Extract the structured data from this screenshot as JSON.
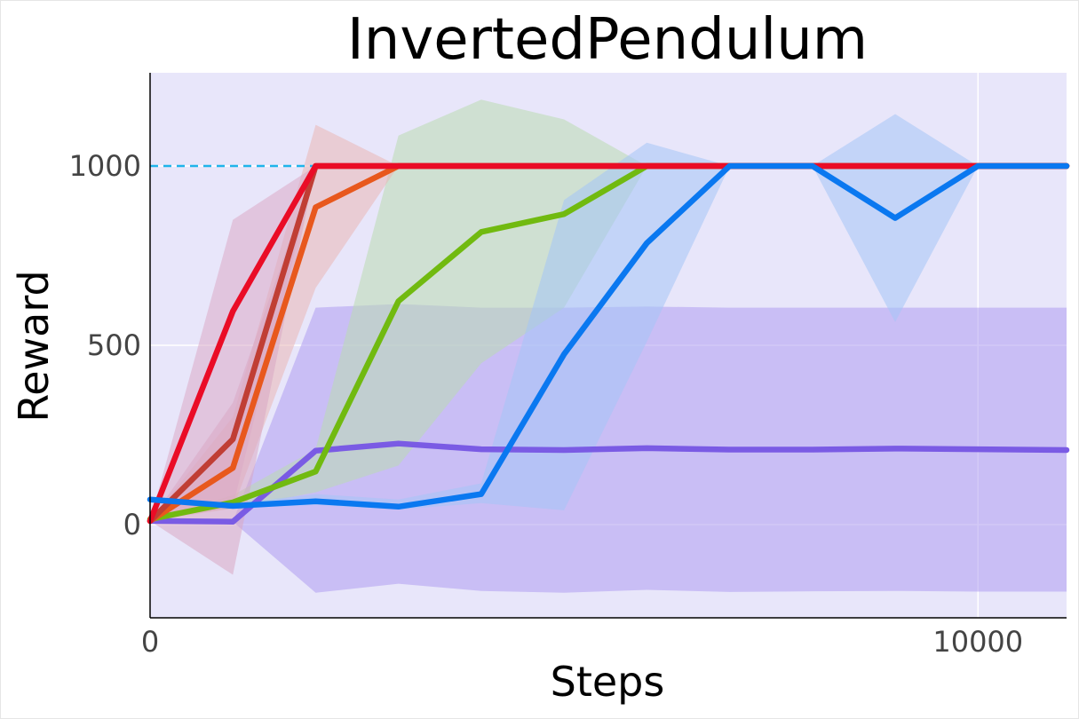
{
  "chart_data": {
    "type": "line",
    "title": "InvertedPendulum",
    "xlabel": "Steps",
    "ylabel": "Reward",
    "xlim": [
      0,
      11070
    ],
    "ylim": [
      -260,
      1260
    ],
    "xticks": [
      {
        "value": 0,
        "label": "0"
      },
      {
        "value": 10000,
        "label": "10000"
      }
    ],
    "yticks": [
      {
        "value": 0,
        "label": "0"
      },
      {
        "value": 500,
        "label": "500"
      },
      {
        "value": 1000,
        "label": "1000"
      }
    ],
    "grid": true,
    "legend": "none",
    "background_color": "#e8e6fa",
    "reference_line": {
      "y": 1000,
      "color": "#1fb4ea",
      "style": "dashed"
    },
    "series": [
      {
        "color": "#7a5be4",
        "band_color": "#ae9df1",
        "x": [
          0,
          1000,
          2000,
          3000,
          4000,
          5000,
          6000,
          7000,
          8000,
          9000,
          10000,
          11070
        ],
        "y": [
          10,
          8,
          206,
          226,
          210,
          208,
          213,
          209,
          209,
          212,
          210,
          208
        ],
        "lower": [
          10,
          8,
          -190,
          -165,
          -185,
          -190,
          -182,
          -188,
          -186,
          -185,
          -187,
          -187
        ],
        "upper": [
          10,
          8,
          605,
          615,
          605,
          605,
          608,
          605,
          605,
          605,
          605,
          605
        ]
      },
      {
        "color": "#71ba10",
        "band_color": "#b9dbb0",
        "x": [
          0,
          1000,
          2000,
          3000,
          4000,
          5000,
          6000,
          7000,
          8000,
          9000,
          10000,
          11070
        ],
        "y": [
          15,
          62,
          148,
          623,
          816,
          866,
          1000,
          1000,
          1000,
          1000,
          1000,
          1000
        ],
        "lower": [
          15,
          45,
          90,
          165,
          450,
          605,
          1000,
          1000,
          1000,
          1000,
          1000,
          1000
        ],
        "upper": [
          15,
          82,
          210,
          1085,
          1185,
          1130,
          1000,
          1000,
          1000,
          1000,
          1000,
          1000
        ]
      },
      {
        "color": "#e8581d",
        "band_color": "#e9b7b4",
        "x": [
          0,
          1000,
          2000,
          3000,
          4000,
          5000,
          6000,
          7000,
          8000,
          9000,
          10000,
          11070
        ],
        "y": [
          10,
          158,
          885,
          1000,
          1000,
          1000,
          1000,
          1000,
          1000,
          1000,
          1000,
          1000
        ],
        "lower": [
          10,
          45,
          660,
          1000,
          1000,
          1000,
          1000,
          1000,
          1000,
          1000,
          1000,
          1000
        ],
        "upper": [
          10,
          300,
          1115,
          1000,
          1000,
          1000,
          1000,
          1000,
          1000,
          1000,
          1000,
          1000
        ]
      },
      {
        "color": "#c03e34",
        "band_color": "#d9a7c3",
        "x": [
          0,
          1000,
          2000,
          3000,
          4000,
          5000,
          6000,
          7000,
          8000,
          9000,
          10000,
          11070
        ],
        "y": [
          10,
          238,
          1000,
          1000,
          1000,
          1000,
          1000,
          1000,
          1000,
          1000,
          1000,
          1000
        ],
        "lower": [
          10,
          -140,
          1000,
          1000,
          1000,
          1000,
          1000,
          1000,
          1000,
          1000,
          1000,
          1000
        ],
        "upper": [
          10,
          340,
          1000,
          1000,
          1000,
          1000,
          1000,
          1000,
          1000,
          1000,
          1000,
          1000
        ]
      },
      {
        "color": "#ea0c26",
        "band_color": "#dba9c6",
        "x": [
          0,
          1000,
          2000,
          3000,
          4000,
          5000,
          6000,
          7000,
          8000,
          9000,
          10000,
          11070
        ],
        "y": [
          10,
          595,
          1000,
          1000,
          1000,
          1000,
          1000,
          1000,
          1000,
          1000,
          1000,
          1000
        ],
        "lower": [
          10,
          50,
          1000,
          1000,
          1000,
          1000,
          1000,
          1000,
          1000,
          1000,
          1000,
          1000
        ],
        "upper": [
          10,
          850,
          1000,
          1000,
          1000,
          1000,
          1000,
          1000,
          1000,
          1000,
          1000,
          1000
        ]
      },
      {
        "color": "#0a78f0",
        "band_color": "#a4c4f6",
        "x": [
          0,
          1000,
          2000,
          3000,
          4000,
          5000,
          6000,
          7000,
          8000,
          9000,
          10000,
          11070
        ],
        "y": [
          70,
          52,
          65,
          50,
          85,
          475,
          785,
          1000,
          1000,
          855,
          1000,
          1000
        ],
        "lower": [
          70,
          45,
          55,
          42,
          60,
          40,
          510,
          1000,
          1000,
          565,
          1000,
          1000
        ],
        "upper": [
          70,
          58,
          85,
          70,
          115,
          905,
          1065,
          1000,
          1000,
          1145,
          1000,
          1000
        ]
      }
    ]
  }
}
